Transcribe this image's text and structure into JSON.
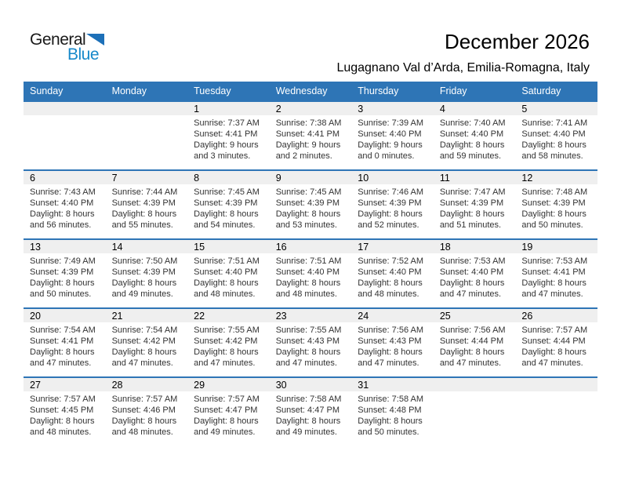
{
  "colors": {
    "accent_blue": "#2E75B6",
    "logo_blue": "#1789CA",
    "logo_triangle_blue": "#1D70B8",
    "band_gray": "#EFEFEF"
  },
  "logo": {
    "word_top": "General",
    "word_bottom": "Blue",
    "triangle_icon": "flag-triangle"
  },
  "header": {
    "title": "December 2026",
    "subtitle": "Lugagnano Val d’Arda, Emilia-Romagna, Italy"
  },
  "calendar": {
    "weekday_headers": [
      "Sunday",
      "Monday",
      "Tuesday",
      "Wednesday",
      "Thursday",
      "Friday",
      "Saturday"
    ],
    "weeks": [
      [
        null,
        null,
        {
          "day": "1",
          "sunrise": "Sunrise: 7:37 AM",
          "sunset": "Sunset: 4:41 PM",
          "daylight": "Daylight: 9 hours and 3 minutes."
        },
        {
          "day": "2",
          "sunrise": "Sunrise: 7:38 AM",
          "sunset": "Sunset: 4:41 PM",
          "daylight": "Daylight: 9 hours and 2 minutes."
        },
        {
          "day": "3",
          "sunrise": "Sunrise: 7:39 AM",
          "sunset": "Sunset: 4:40 PM",
          "daylight": "Daylight: 9 hours and 0 minutes."
        },
        {
          "day": "4",
          "sunrise": "Sunrise: 7:40 AM",
          "sunset": "Sunset: 4:40 PM",
          "daylight": "Daylight: 8 hours and 59 minutes."
        },
        {
          "day": "5",
          "sunrise": "Sunrise: 7:41 AM",
          "sunset": "Sunset: 4:40 PM",
          "daylight": "Daylight: 8 hours and 58 minutes."
        }
      ],
      [
        {
          "day": "6",
          "sunrise": "Sunrise: 7:43 AM",
          "sunset": "Sunset: 4:40 PM",
          "daylight": "Daylight: 8 hours and 56 minutes."
        },
        {
          "day": "7",
          "sunrise": "Sunrise: 7:44 AM",
          "sunset": "Sunset: 4:39 PM",
          "daylight": "Daylight: 8 hours and 55 minutes."
        },
        {
          "day": "8",
          "sunrise": "Sunrise: 7:45 AM",
          "sunset": "Sunset: 4:39 PM",
          "daylight": "Daylight: 8 hours and 54 minutes."
        },
        {
          "day": "9",
          "sunrise": "Sunrise: 7:45 AM",
          "sunset": "Sunset: 4:39 PM",
          "daylight": "Daylight: 8 hours and 53 minutes."
        },
        {
          "day": "10",
          "sunrise": "Sunrise: 7:46 AM",
          "sunset": "Sunset: 4:39 PM",
          "daylight": "Daylight: 8 hours and 52 minutes."
        },
        {
          "day": "11",
          "sunrise": "Sunrise: 7:47 AM",
          "sunset": "Sunset: 4:39 PM",
          "daylight": "Daylight: 8 hours and 51 minutes."
        },
        {
          "day": "12",
          "sunrise": "Sunrise: 7:48 AM",
          "sunset": "Sunset: 4:39 PM",
          "daylight": "Daylight: 8 hours and 50 minutes."
        }
      ],
      [
        {
          "day": "13",
          "sunrise": "Sunrise: 7:49 AM",
          "sunset": "Sunset: 4:39 PM",
          "daylight": "Daylight: 8 hours and 50 minutes."
        },
        {
          "day": "14",
          "sunrise": "Sunrise: 7:50 AM",
          "sunset": "Sunset: 4:39 PM",
          "daylight": "Daylight: 8 hours and 49 minutes."
        },
        {
          "day": "15",
          "sunrise": "Sunrise: 7:51 AM",
          "sunset": "Sunset: 4:40 PM",
          "daylight": "Daylight: 8 hours and 48 minutes."
        },
        {
          "day": "16",
          "sunrise": "Sunrise: 7:51 AM",
          "sunset": "Sunset: 4:40 PM",
          "daylight": "Daylight: 8 hours and 48 minutes."
        },
        {
          "day": "17",
          "sunrise": "Sunrise: 7:52 AM",
          "sunset": "Sunset: 4:40 PM",
          "daylight": "Daylight: 8 hours and 48 minutes."
        },
        {
          "day": "18",
          "sunrise": "Sunrise: 7:53 AM",
          "sunset": "Sunset: 4:40 PM",
          "daylight": "Daylight: 8 hours and 47 minutes."
        },
        {
          "day": "19",
          "sunrise": "Sunrise: 7:53 AM",
          "sunset": "Sunset: 4:41 PM",
          "daylight": "Daylight: 8 hours and 47 minutes."
        }
      ],
      [
        {
          "day": "20",
          "sunrise": "Sunrise: 7:54 AM",
          "sunset": "Sunset: 4:41 PM",
          "daylight": "Daylight: 8 hours and 47 minutes."
        },
        {
          "day": "21",
          "sunrise": "Sunrise: 7:54 AM",
          "sunset": "Sunset: 4:42 PM",
          "daylight": "Daylight: 8 hours and 47 minutes."
        },
        {
          "day": "22",
          "sunrise": "Sunrise: 7:55 AM",
          "sunset": "Sunset: 4:42 PM",
          "daylight": "Daylight: 8 hours and 47 minutes."
        },
        {
          "day": "23",
          "sunrise": "Sunrise: 7:55 AM",
          "sunset": "Sunset: 4:43 PM",
          "daylight": "Daylight: 8 hours and 47 minutes."
        },
        {
          "day": "24",
          "sunrise": "Sunrise: 7:56 AM",
          "sunset": "Sunset: 4:43 PM",
          "daylight": "Daylight: 8 hours and 47 minutes."
        },
        {
          "day": "25",
          "sunrise": "Sunrise: 7:56 AM",
          "sunset": "Sunset: 4:44 PM",
          "daylight": "Daylight: 8 hours and 47 minutes."
        },
        {
          "day": "26",
          "sunrise": "Sunrise: 7:57 AM",
          "sunset": "Sunset: 4:44 PM",
          "daylight": "Daylight: 8 hours and 47 minutes."
        }
      ],
      [
        {
          "day": "27",
          "sunrise": "Sunrise: 7:57 AM",
          "sunset": "Sunset: 4:45 PM",
          "daylight": "Daylight: 8 hours and 48 minutes."
        },
        {
          "day": "28",
          "sunrise": "Sunrise: 7:57 AM",
          "sunset": "Sunset: 4:46 PM",
          "daylight": "Daylight: 8 hours and 48 minutes."
        },
        {
          "day": "29",
          "sunrise": "Sunrise: 7:57 AM",
          "sunset": "Sunset: 4:47 PM",
          "daylight": "Daylight: 8 hours and 49 minutes."
        },
        {
          "day": "30",
          "sunrise": "Sunrise: 7:58 AM",
          "sunset": "Sunset: 4:47 PM",
          "daylight": "Daylight: 8 hours and 49 minutes."
        },
        {
          "day": "31",
          "sunrise": "Sunrise: 7:58 AM",
          "sunset": "Sunset: 4:48 PM",
          "daylight": "Daylight: 8 hours and 50 minutes."
        },
        null,
        null
      ]
    ]
  }
}
